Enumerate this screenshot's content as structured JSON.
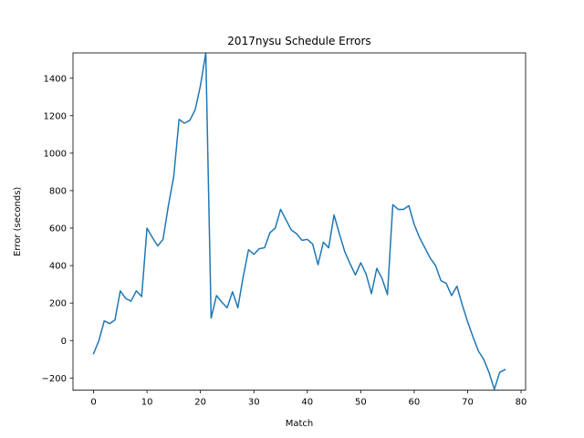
{
  "chart_data": {
    "type": "line",
    "title": "2017nysu Schedule Errors",
    "xlabel": "Match",
    "ylabel": "Error (seconds)",
    "xlim": [
      -3.85,
      80.85
    ],
    "ylim": [
      -265,
      1535
    ],
    "xticks": [
      0,
      10,
      20,
      30,
      40,
      50,
      60,
      70,
      80
    ],
    "yticks": [
      -200,
      0,
      200,
      400,
      600,
      800,
      1000,
      1200,
      1400
    ],
    "grid": false,
    "colors": {
      "line": "#1f77b4"
    },
    "series": [
      {
        "x": [
          0,
          1,
          2,
          3,
          4,
          5,
          6,
          7,
          8,
          9,
          10,
          11,
          12,
          13,
          14,
          15,
          16,
          17,
          18,
          19,
          20,
          21,
          22,
          23,
          24,
          25,
          26,
          27,
          28,
          29,
          30,
          31,
          32,
          33,
          34,
          35,
          36,
          37,
          38,
          39,
          40,
          41,
          42,
          43,
          44,
          45,
          46,
          47,
          48,
          49,
          50,
          51,
          52,
          53,
          54,
          55,
          56,
          57,
          58,
          59,
          60,
          61,
          62,
          63,
          64,
          65,
          66,
          67,
          68,
          69,
          70,
          71,
          72,
          73,
          74,
          75,
          76,
          77
        ],
        "values": [
          -70,
          0,
          105,
          90,
          110,
          265,
          225,
          210,
          265,
          235,
          600,
          550,
          505,
          540,
          720,
          875,
          1180,
          1160,
          1175,
          1230,
          1360,
          1535,
          120,
          240,
          205,
          175,
          260,
          175,
          340,
          485,
          460,
          490,
          495,
          575,
          600,
          700,
          645,
          590,
          570,
          535,
          540,
          515,
          405,
          525,
          495,
          670,
          570,
          475,
          410,
          350,
          415,
          355,
          250,
          385,
          330,
          245,
          725,
          700,
          700,
          720,
          620,
          550,
          495,
          440,
          400,
          320,
          305,
          240,
          290,
          190,
          100,
          20,
          -55,
          -100,
          -170,
          -260,
          -170,
          -155
        ]
      }
    ]
  }
}
